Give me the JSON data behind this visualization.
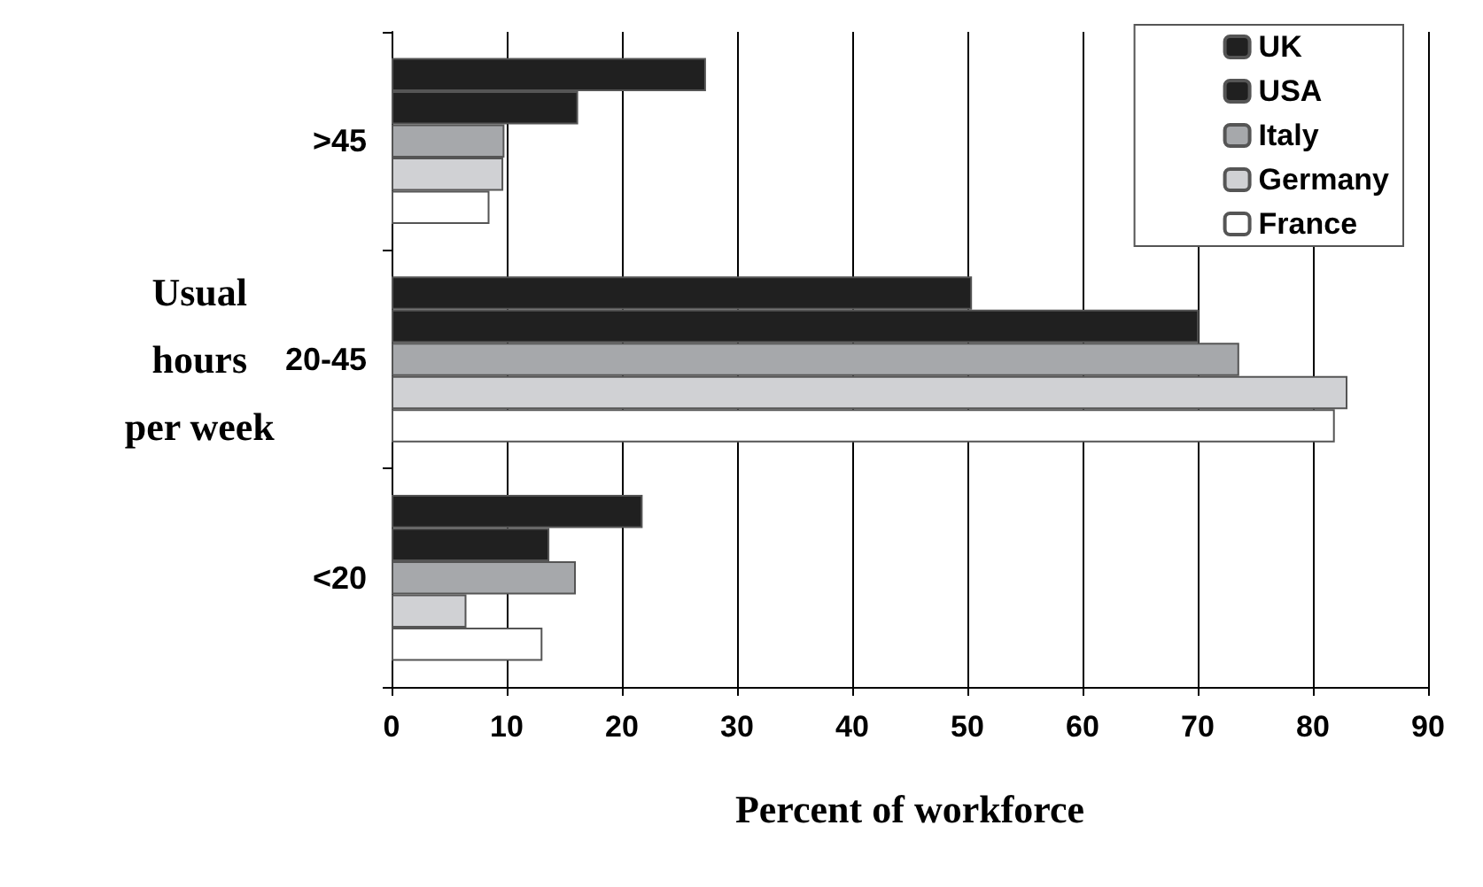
{
  "chart_data": {
    "type": "bar",
    "orientation": "horizontal",
    "xlabel": "Percent of workforce",
    "ylabel": "Usual\nhours\nper week",
    "categories": [
      ">45",
      "20-45",
      "<20"
    ],
    "series": [
      {
        "name": "UK",
        "color": "#202020",
        "values": [
          27.3,
          50.4,
          21.8
        ]
      },
      {
        "name": "USA",
        "color": "#202020",
        "values": [
          16.2,
          70.1,
          13.7
        ]
      },
      {
        "name": "Italy",
        "color": "#a6a8ab",
        "values": [
          9.8,
          73.6,
          16.0
        ]
      },
      {
        "name": "Germany",
        "color": "#d0d1d4",
        "values": [
          9.7,
          83.0,
          6.5
        ]
      },
      {
        "name": "France",
        "color": "#ffffff",
        "values": [
          8.5,
          81.9,
          13.1
        ]
      }
    ],
    "xlim": [
      0,
      90
    ],
    "xticks": [
      0,
      10,
      20,
      30,
      40,
      50,
      60,
      70,
      80,
      90
    ],
    "grid": "x",
    "legend": "top right"
  }
}
